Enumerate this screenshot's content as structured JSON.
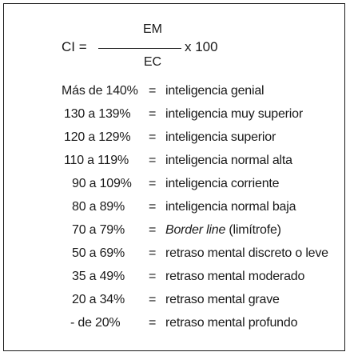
{
  "formula": {
    "lhs": "CI =",
    "numerator": "EM",
    "denominator": "EC",
    "multiplier": "x 100"
  },
  "rows": [
    {
      "range": "Más de 140%",
      "eq": "=",
      "desc": "inteligencia genial"
    },
    {
      "range": "130 a 139%",
      "eq": "=",
      "desc": "inteligencia muy superior"
    },
    {
      "range": "120 a 129%",
      "eq": "=",
      "desc": "inteligencia superior"
    },
    {
      "range": "110 a 119%",
      "eq": "=",
      "desc": "inteligencia normal alta"
    },
    {
      "range": "90 a 109%",
      "eq": "=",
      "desc": "inteligencia corriente"
    },
    {
      "range": "80 a 89%",
      "eq": "=",
      "desc": "inteligencia normal baja"
    },
    {
      "range": "70 a 79%",
      "eq": "=",
      "desc_italic": "Border line",
      "desc": " (limítrofe)"
    },
    {
      "range": "50 a 69%",
      "eq": "=",
      "desc": "retraso mental discreto o leve"
    },
    {
      "range": "35 a 49%",
      "eq": "=",
      "desc": "retraso mental moderado"
    },
    {
      "range": "20 a 34%",
      "eq": "=",
      "desc": "retraso mental grave"
    },
    {
      "range": "- de 20%",
      "eq": "=",
      "desc": "retraso mental profundo"
    }
  ]
}
